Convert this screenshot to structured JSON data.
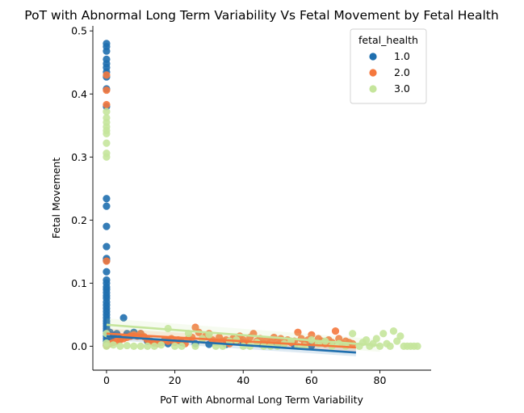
{
  "chart_data": {
    "type": "scatter",
    "title": "PoT with Abnormal Long Term Variability Vs Fetal Movement by Fetal Health",
    "xlabel": "PoT with Abnormal Long Term Variability",
    "ylabel": "Fetal Movement",
    "xlim": [
      -4,
      95
    ],
    "ylim": [
      -0.038,
      0.508
    ],
    "xticks": [
      0,
      20,
      40,
      60,
      80
    ],
    "yticks": [
      0.0,
      0.1,
      0.2,
      0.3,
      0.4,
      0.5
    ],
    "ytick_labels": [
      "0.0",
      "0.1",
      "0.2",
      "0.3",
      "0.4",
      "0.5"
    ],
    "legend": {
      "title": "fetal_health",
      "position": "top-right"
    },
    "series": [
      {
        "name": "1.0",
        "color": "#1f6faf",
        "points": [
          [
            0,
            0.48
          ],
          [
            0,
            0.475
          ],
          [
            0,
            0.468
          ],
          [
            0,
            0.455
          ],
          [
            0,
            0.448
          ],
          [
            0,
            0.442
          ],
          [
            0,
            0.435
          ],
          [
            0,
            0.427
          ],
          [
            0,
            0.408
          ],
          [
            0,
            0.38
          ],
          [
            0,
            0.234
          ],
          [
            0,
            0.222
          ],
          [
            0,
            0.19
          ],
          [
            0,
            0.158
          ],
          [
            0,
            0.139
          ],
          [
            0,
            0.136
          ],
          [
            0,
            0.118
          ],
          [
            0,
            0.105
          ],
          [
            0,
            0.1
          ],
          [
            0,
            0.094
          ],
          [
            0,
            0.09
          ],
          [
            0,
            0.085
          ],
          [
            0,
            0.08
          ],
          [
            0,
            0.076
          ],
          [
            0,
            0.07
          ],
          [
            0,
            0.065
          ],
          [
            0,
            0.06
          ],
          [
            0,
            0.055
          ],
          [
            0,
            0.05
          ],
          [
            0,
            0.045
          ],
          [
            0,
            0.04
          ],
          [
            0,
            0.036
          ],
          [
            0,
            0.032
          ],
          [
            0,
            0.028
          ],
          [
            0,
            0.024
          ],
          [
            0,
            0.02
          ],
          [
            0,
            0.016
          ],
          [
            0,
            0.012
          ],
          [
            0,
            0.008
          ],
          [
            0,
            0.004
          ],
          [
            0,
            0.001
          ],
          [
            1,
            0.022
          ],
          [
            1,
            0.012
          ],
          [
            2,
            0.016
          ],
          [
            3,
            0.02
          ],
          [
            4,
            0.012
          ],
          [
            5,
            0.045
          ],
          [
            6,
            0.02
          ],
          [
            7,
            0.016
          ],
          [
            8,
            0.022
          ],
          [
            10,
            0.02
          ],
          [
            12,
            0.008
          ],
          [
            14,
            0.006
          ],
          [
            18,
            0.004
          ],
          [
            22,
            0.006
          ],
          [
            26,
            0.004
          ],
          [
            30,
            0.003
          ],
          [
            35,
            0.003
          ],
          [
            40,
            0.006
          ],
          [
            45,
            0.004
          ],
          [
            50,
            0.002
          ],
          [
            55,
            0.002
          ],
          [
            60,
            0.001
          ]
        ],
        "fit_line": [
          [
            0,
            0.016
          ],
          [
            73,
            -0.01
          ]
        ]
      },
      {
        "name": "2.0",
        "color": "#f5783d",
        "points": [
          [
            0,
            0.43
          ],
          [
            0,
            0.406
          ],
          [
            0,
            0.383
          ],
          [
            0,
            0.135
          ],
          [
            0,
            0.001
          ],
          [
            1,
            0.004
          ],
          [
            2,
            0.006
          ],
          [
            3,
            0.008
          ],
          [
            4,
            0.01
          ],
          [
            5,
            0.012
          ],
          [
            6,
            0.014
          ],
          [
            7,
            0.016
          ],
          [
            8,
            0.018
          ],
          [
            9,
            0.016
          ],
          [
            10,
            0.02
          ],
          [
            11,
            0.015
          ],
          [
            12,
            0.01
          ],
          [
            13,
            0.008
          ],
          [
            14,
            0.005
          ],
          [
            15,
            0.004
          ],
          [
            16,
            0.006
          ],
          [
            17,
            0.01
          ],
          [
            18,
            0.008
          ],
          [
            19,
            0.012
          ],
          [
            20,
            0.006
          ],
          [
            21,
            0.01
          ],
          [
            22,
            0.008
          ],
          [
            23,
            0.004
          ],
          [
            24,
            0.012
          ],
          [
            25,
            0.014
          ],
          [
            26,
            0.03
          ],
          [
            27,
            0.022
          ],
          [
            28,
            0.012
          ],
          [
            29,
            0.016
          ],
          [
            30,
            0.02
          ],
          [
            31,
            0.01
          ],
          [
            32,
            0.006
          ],
          [
            33,
            0.014
          ],
          [
            34,
            0.008
          ],
          [
            35,
            0.01
          ],
          [
            36,
            0.004
          ],
          [
            37,
            0.012
          ],
          [
            38,
            0.008
          ],
          [
            39,
            0.016
          ],
          [
            40,
            0.01
          ],
          [
            41,
            0.006
          ],
          [
            42,
            0.014
          ],
          [
            43,
            0.02
          ],
          [
            44,
            0.008
          ],
          [
            45,
            0.012
          ],
          [
            46,
            0.004
          ],
          [
            47,
            0.01
          ],
          [
            48,
            0.006
          ],
          [
            49,
            0.014
          ],
          [
            50,
            0.008
          ],
          [
            51,
            0.012
          ],
          [
            52,
            0.004
          ],
          [
            53,
            0.01
          ],
          [
            54,
            0.006
          ],
          [
            55,
            0.008
          ],
          [
            56,
            0.022
          ],
          [
            57,
            0.012
          ],
          [
            58,
            0.004
          ],
          [
            59,
            0.01
          ],
          [
            60,
            0.018
          ],
          [
            61,
            0.006
          ],
          [
            62,
            0.012
          ],
          [
            63,
            0.008
          ],
          [
            64,
            0.004
          ],
          [
            65,
            0.01
          ],
          [
            66,
            0.006
          ],
          [
            67,
            0.024
          ],
          [
            68,
            0.012
          ],
          [
            69,
            0.004
          ],
          [
            70,
            0.008
          ],
          [
            71,
            0.006
          ],
          [
            72,
            0.004
          ]
        ],
        "fit_line": [
          [
            0,
            0.02
          ],
          [
            73,
            -0.002
          ]
        ]
      },
      {
        "name": "3.0",
        "color": "#c5e59c",
        "points": [
          [
            0,
            0.372
          ],
          [
            0,
            0.362
          ],
          [
            0,
            0.355
          ],
          [
            0,
            0.348
          ],
          [
            0,
            0.342
          ],
          [
            0,
            0.337
          ],
          [
            0,
            0.322
          ],
          [
            0,
            0.306
          ],
          [
            0,
            0.3
          ],
          [
            0,
            0.02
          ],
          [
            0,
            0.005
          ],
          [
            0,
            0.0
          ],
          [
            2,
            0.002
          ],
          [
            4,
            0.0
          ],
          [
            6,
            0.001
          ],
          [
            8,
            0.0
          ],
          [
            10,
            0.0
          ],
          [
            12,
            0.0
          ],
          [
            14,
            0.0
          ],
          [
            16,
            0.002
          ],
          [
            18,
            0.028
          ],
          [
            20,
            0.0
          ],
          [
            22,
            0.0
          ],
          [
            24,
            0.02
          ],
          [
            26,
            0.0
          ],
          [
            28,
            0.012
          ],
          [
            30,
            0.018
          ],
          [
            32,
            0.0
          ],
          [
            34,
            0.0
          ],
          [
            36,
            0.008
          ],
          [
            38,
            0.01
          ],
          [
            40,
            0.0
          ],
          [
            42,
            0.0
          ],
          [
            44,
            0.006
          ],
          [
            46,
            0.0
          ],
          [
            48,
            0.0
          ],
          [
            50,
            0.0
          ],
          [
            52,
            0.004
          ],
          [
            54,
            0.008
          ],
          [
            56,
            0.0
          ],
          [
            58,
            0.0
          ],
          [
            60,
            0.01
          ],
          [
            62,
            0.004
          ],
          [
            64,
            0.008
          ],
          [
            66,
            0.0
          ],
          [
            68,
            0.004
          ],
          [
            70,
            0.0
          ],
          [
            72,
            0.02
          ],
          [
            74,
            0.0
          ],
          [
            75,
            0.006
          ],
          [
            76,
            0.01
          ],
          [
            77,
            0.0
          ],
          [
            78,
            0.004
          ],
          [
            79,
            0.012
          ],
          [
            80,
            0.0
          ],
          [
            81,
            0.02
          ],
          [
            82,
            0.004
          ],
          [
            83,
            0.0
          ],
          [
            84,
            0.024
          ],
          [
            85,
            0.008
          ],
          [
            86,
            0.016
          ],
          [
            87,
            0.0
          ],
          [
            88,
            0.0
          ],
          [
            89,
            0.0
          ],
          [
            90,
            0.0
          ],
          [
            91,
            0.0
          ]
        ],
        "fit_line": [
          [
            0,
            0.034
          ],
          [
            80,
            0.001
          ]
        ]
      }
    ]
  }
}
